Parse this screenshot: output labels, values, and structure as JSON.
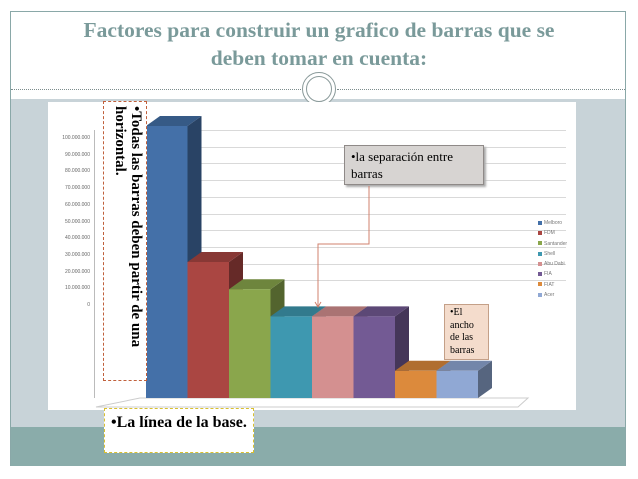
{
  "slide": {
    "title": "Factores para construir un grafico de barras que se deben tomar en cuenta:",
    "title_line1": "Factores para construir un grafico de barras que se",
    "title_line2": "deben tomar en cuenta:"
  },
  "callouts": {
    "vertical": "•Todas las barras deben partir de una horizontal.",
    "vertical_line1": "•Todas las barras deben partir de una",
    "vertical_line2": "horizontal.",
    "separacion": "•la separación entre barras",
    "ancho": "•El ancho de las barras",
    "base": "•La línea de la base."
  },
  "colors": {
    "title": "#7a9a9a",
    "band": "#c8d3d8",
    "band_bottom": "#8aacaa"
  },
  "chart_data": {
    "type": "bar",
    "title": "",
    "xlabel": "",
    "ylabel": "",
    "categories": [
      "Melboro",
      "FDM",
      "Santander",
      "Shell",
      "Abu Dabi",
      "FIA",
      "FIAT",
      "Acer"
    ],
    "values": [
      100000000,
      50000000,
      40000000,
      30000000,
      30000000,
      30000000,
      10000000,
      10000000
    ],
    "colors": [
      "#4470a8",
      "#aa4642",
      "#8aa64c",
      "#3e98b0",
      "#d49090",
      "#735a94",
      "#dc8a3c",
      "#90a8d4"
    ],
    "ylim": [
      0,
      100000000
    ],
    "yticks": [
      "0",
      "10.000.000",
      "20.000.000",
      "30.000.000",
      "40.000.000",
      "50.000.000",
      "60.000.000",
      "70.000.000",
      "80.000.000",
      "90.000.000",
      "100.000.000"
    ],
    "grid": true,
    "legend_position": "right",
    "style": "3d-column"
  }
}
